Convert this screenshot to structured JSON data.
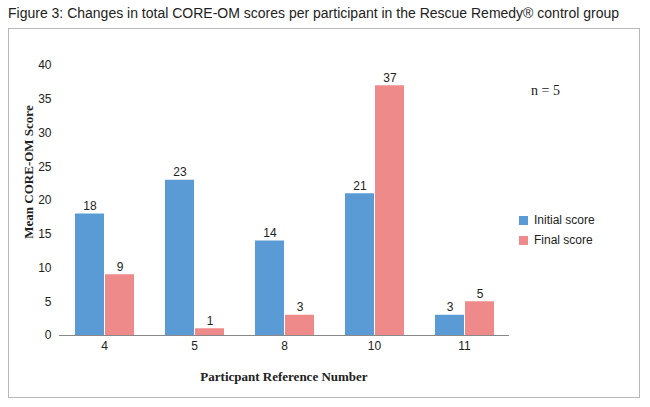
{
  "chart_data": {
    "type": "bar",
    "title": "Figure 3: Changes in total CORE-OM scores per participant in the Rescue Remedy® control group",
    "annotation": "n = 5",
    "x_label": "Particpant Reference Number",
    "y_label": "Mean CORE-OM Score",
    "categories": [
      "4",
      "5",
      "8",
      "10",
      "11"
    ],
    "series": [
      {
        "name": "Initial score",
        "color": "#5b9bd5",
        "values": [
          18,
          23,
          14,
          21,
          3
        ]
      },
      {
        "name": "Final score",
        "color": "#ef8a8a",
        "values": [
          9,
          1,
          3,
          37,
          5
        ]
      }
    ],
    "ylim": [
      0,
      40
    ],
    "yticks": [
      0,
      5,
      10,
      15,
      20,
      25,
      30,
      35,
      40
    ],
    "grid": false,
    "legend": "right",
    "data_labels": true
  }
}
